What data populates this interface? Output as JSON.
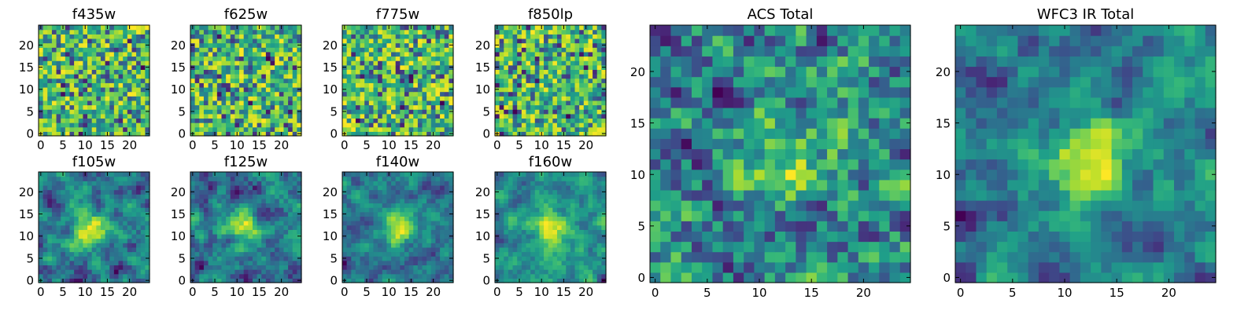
{
  "chart_data": [
    {
      "id": "f435w",
      "type": "heatmap",
      "title": "f435w",
      "size": 25,
      "x_ticks": [
        0,
        5,
        10,
        15,
        20
      ],
      "y_ticks": [
        0,
        5,
        10,
        15,
        20
      ],
      "xlim": [
        0,
        24
      ],
      "ylim": [
        0,
        24
      ],
      "colormap": "viridis",
      "pattern": "noise",
      "seed": 11
    },
    {
      "id": "f625w",
      "type": "heatmap",
      "title": "f625w",
      "size": 25,
      "x_ticks": [
        0,
        5,
        10,
        15,
        20
      ],
      "y_ticks": [
        0,
        5,
        10,
        15,
        20
      ],
      "xlim": [
        0,
        24
      ],
      "ylim": [
        0,
        24
      ],
      "colormap": "viridis",
      "pattern": "noise",
      "seed": 23
    },
    {
      "id": "f775w",
      "type": "heatmap",
      "title": "f775w",
      "size": 25,
      "x_ticks": [
        0,
        5,
        10,
        15,
        20
      ],
      "y_ticks": [
        0,
        5,
        10,
        15,
        20
      ],
      "xlim": [
        0,
        24
      ],
      "ylim": [
        0,
        24
      ],
      "colormap": "viridis",
      "pattern": "noise",
      "seed": 37
    },
    {
      "id": "f850lp",
      "type": "heatmap",
      "title": "f850lp",
      "size": 25,
      "x_ticks": [
        0,
        5,
        10,
        15,
        20
      ],
      "y_ticks": [
        0,
        5,
        10,
        15,
        20
      ],
      "xlim": [
        0,
        24
      ],
      "ylim": [
        0,
        24
      ],
      "colormap": "viridis",
      "pattern": "noise",
      "seed": 41
    },
    {
      "id": "f105w",
      "type": "heatmap",
      "title": "f105w",
      "size": 25,
      "x_ticks": [
        0,
        5,
        10,
        15,
        20
      ],
      "y_ticks": [
        0,
        5,
        10,
        15,
        20
      ],
      "xlim": [
        0,
        24
      ],
      "ylim": [
        0,
        24
      ],
      "colormap": "viridis",
      "pattern": "smooth-source",
      "seed": 53
    },
    {
      "id": "f125w",
      "type": "heatmap",
      "title": "f125w",
      "size": 25,
      "x_ticks": [
        0,
        5,
        10,
        15,
        20
      ],
      "y_ticks": [
        0,
        5,
        10,
        15,
        20
      ],
      "xlim": [
        0,
        24
      ],
      "ylim": [
        0,
        24
      ],
      "colormap": "viridis",
      "pattern": "smooth-source",
      "seed": 67
    },
    {
      "id": "f140w",
      "type": "heatmap",
      "title": "f140w",
      "size": 25,
      "x_ticks": [
        0,
        5,
        10,
        15,
        20
      ],
      "y_ticks": [
        0,
        5,
        10,
        15,
        20
      ],
      "xlim": [
        0,
        24
      ],
      "ylim": [
        0,
        24
      ],
      "colormap": "viridis",
      "pattern": "smooth-source",
      "seed": 79
    },
    {
      "id": "f160w",
      "type": "heatmap",
      "title": "f160w",
      "size": 25,
      "x_ticks": [
        0,
        5,
        10,
        15,
        20
      ],
      "y_ticks": [
        0,
        5,
        10,
        15,
        20
      ],
      "xlim": [
        0,
        24
      ],
      "ylim": [
        0,
        24
      ],
      "colormap": "viridis",
      "pattern": "smooth-source",
      "seed": 83
    },
    {
      "id": "acs-total",
      "type": "heatmap",
      "title": "ACS Total",
      "size": 25,
      "x_ticks": [
        0,
        5,
        10,
        15,
        20
      ],
      "y_ticks": [
        0,
        5,
        10,
        15,
        20
      ],
      "xlim": [
        0,
        24
      ],
      "ylim": [
        0,
        24
      ],
      "colormap": "viridis",
      "pattern": "noise-source",
      "seed": 97
    },
    {
      "id": "wfc3-ir-total",
      "type": "heatmap",
      "title": "WFC3 IR Total",
      "size": 25,
      "x_ticks": [
        0,
        5,
        10,
        15,
        20
      ],
      "y_ticks": [
        0,
        5,
        10,
        15,
        20
      ],
      "xlim": [
        0,
        24
      ],
      "ylim": [
        0,
        24
      ],
      "colormap": "viridis",
      "pattern": "smooth-source",
      "seed": 101
    }
  ]
}
